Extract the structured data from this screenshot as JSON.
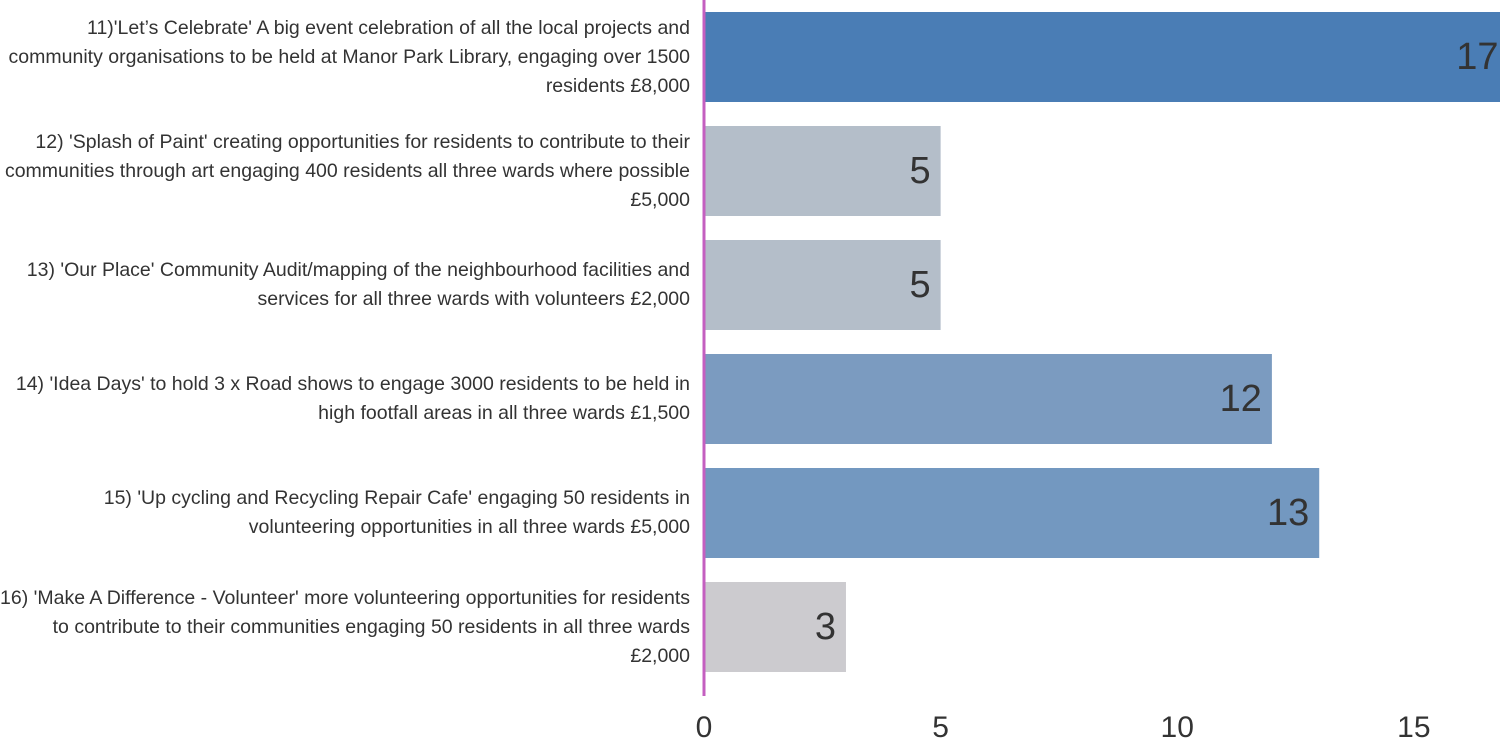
{
  "chart_data": {
    "type": "bar",
    "orientation": "horizontal",
    "categories": [
      "11)'Let’s Celebrate' A big event celebration of all the local projects and community organisations to be held at Manor Park Library, engaging over 1500 residents £8,000",
      "12) 'Splash of Paint' creating opportunities for residents to contribute to their communities through art engaging 400 residents all three wards where possible £5,000",
      "13) 'Our Place' Community Audit/mapping of the neighbourhood facilities and services for all three wards with volunteers £2,000",
      "14) 'Idea Days' to hold 3 x Road shows to engage 3000 residents to be held in high footfall areas in all three wards £1,500",
      "15) 'Up cycling and Recycling Repair Cafe' engaging 50 residents in volunteering opportunities in all three wards £5,000",
      "16) 'Make A Difference - Volunteer' more volunteering opportunities for residents to contribute to their communities engaging 50 residents in all three wards £2,000"
    ],
    "values": [
      17,
      5,
      5,
      12,
      13,
      3
    ],
    "colors": [
      "#4a7db5",
      "#b4bec9",
      "#b4bec9",
      "#7b9bc0",
      "#7398c0",
      "#cccbcf"
    ],
    "xlim": [
      0,
      16.82
    ],
    "xticks": [
      0,
      5,
      10,
      15
    ],
    "axis_color": "#c45fc0"
  }
}
